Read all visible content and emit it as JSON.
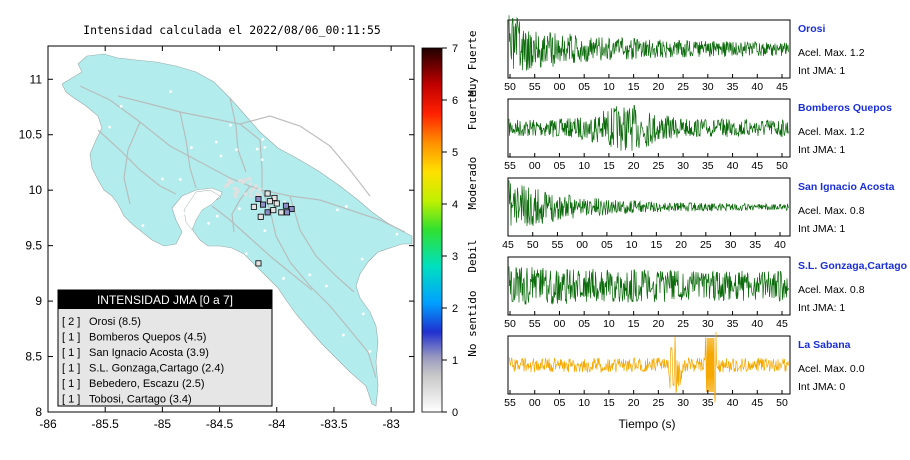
{
  "map": {
    "title": "Intensidad calculada el 2022/08/06_00:11:55",
    "lon_ticks": [
      "-86",
      "-85.5",
      "-85",
      "-84.5",
      "-84",
      "-83.5",
      "-83"
    ],
    "lat_ticks": [
      "11",
      "10.5",
      "10",
      "9.5",
      "9",
      "8.5",
      "8"
    ],
    "xlim": [
      -86,
      -82.8
    ],
    "ylim": [
      8,
      11.3
    ],
    "land_color": "#b3ecec",
    "legend": {
      "title": "INTENSIDAD JMA [0 a 7]",
      "items": [
        {
          "count": "[ 2 ]",
          "name": "Orosi (8.5)"
        },
        {
          "count": "[ 1 ]",
          "name": "Bomberos Quepos (4.5)"
        },
        {
          "count": "[ 1 ]",
          "name": "San Ignacio Acosta (3.9)"
        },
        {
          "count": "[ 1 ]",
          "name": "S.L. Gonzaga,Cartago (2.4)"
        },
        {
          "count": "[ 1 ]",
          "name": "Bebedero, Escazu (2.5)"
        },
        {
          "count": "[ 1 ]",
          "name": "Tobosi, Cartago (3.4)"
        }
      ]
    },
    "stations": [
      {
        "lon": -83.87,
        "lat": 9.83,
        "intensity": 1
      },
      {
        "lon": -83.92,
        "lat": 9.86,
        "intensity": 1
      },
      {
        "lon": -84.02,
        "lat": 9.93,
        "intensity": 0
      },
      {
        "lon": -84.06,
        "lat": 9.9,
        "intensity": 0
      },
      {
        "lon": -84.12,
        "lat": 9.87,
        "intensity": 1
      },
      {
        "lon": -84.16,
        "lat": 9.92,
        "intensity": 1
      },
      {
        "lon": -84.08,
        "lat": 9.97,
        "intensity": 0
      },
      {
        "lon": -84.03,
        "lat": 9.82,
        "intensity": 0
      },
      {
        "lon": -84.2,
        "lat": 9.85,
        "intensity": 0
      },
      {
        "lon": -83.96,
        "lat": 9.8,
        "intensity": 0
      },
      {
        "lon": -83.91,
        "lat": 9.8,
        "intensity": 1
      },
      {
        "lon": -84.16,
        "lat": 9.34,
        "intensity": 0
      },
      {
        "lon": -84.14,
        "lat": 9.76,
        "intensity": 0
      },
      {
        "lon": -84.08,
        "lat": 9.8,
        "intensity": 1
      },
      {
        "lon": -84.0,
        "lat": 9.88,
        "intensity": 0
      }
    ]
  },
  "colorbar": {
    "ticks": [
      "0",
      "1",
      "2",
      "3",
      "4",
      "5",
      "6",
      "7"
    ],
    "categories": [
      "No sentido",
      "Debil",
      "Moderado",
      "Fuerte",
      "Muy Fuerte"
    ]
  },
  "waveforms": {
    "xlabel": "Tiempo (s)",
    "panels": [
      {
        "name": "Orosi",
        "acel": "Acel. Max. 1.2",
        "jma": "Int JMA: 1",
        "color": "#0b6b0b",
        "ticks": [
          "50",
          "55",
          "00",
          "05",
          "10",
          "15",
          "20",
          "25",
          "30",
          "35",
          "40",
          "45"
        ],
        "decay": "slow",
        "seed": 3
      },
      {
        "name": "Bomberos Quepos",
        "acel": "Acel. Max. 1.2",
        "jma": "Int JMA: 1",
        "color": "#0b6b0b",
        "ticks": [
          "55",
          "00",
          "05",
          "10",
          "15",
          "20",
          "25",
          "30",
          "35",
          "40",
          "45",
          "50"
        ],
        "decay": "burst",
        "seed": 7
      },
      {
        "name": "San Ignacio Acosta",
        "acel": "Acel. Max. 0.8",
        "jma": "Int JMA: 1",
        "color": "#0b6b0b",
        "ticks": [
          "45",
          "50",
          "55",
          "00",
          "05",
          "10",
          "15",
          "20",
          "25",
          "30",
          "35",
          "40"
        ],
        "decay": "fast",
        "seed": 11
      },
      {
        "name": "S.L. Gonzaga,Cartago",
        "acel": "Acel. Max. 0.8",
        "jma": "Int JMA: 1",
        "color": "#0b6b0b",
        "ticks": [
          "50",
          "55",
          "00",
          "05",
          "10",
          "15",
          "20",
          "25",
          "30",
          "35",
          "40",
          "45"
        ],
        "decay": "flat",
        "seed": 19
      },
      {
        "name": "La Sabana",
        "acel": "Acel. Max. 0.0",
        "jma": "Int JMA: 0",
        "color": "#f5a800",
        "ticks": [
          "55",
          "00",
          "05",
          "10",
          "15",
          "20",
          "25",
          "30",
          "35",
          "40",
          "45",
          "50"
        ],
        "decay": "spikes",
        "seed": 23
      }
    ]
  },
  "chart_data": [
    {
      "type": "scatter",
      "title": "Intensidad calculada el 2022/08/06_00:11:55",
      "xlim": [
        -86,
        -82.8
      ],
      "ylim": [
        8,
        11.3
      ],
      "legend": "bottom-left"
    },
    {
      "type": "line",
      "xlabel": "Tiempo (s)",
      "series": [
        {
          "name": "Orosi",
          "max_accel": 1.2,
          "jma_intensity": 1
        },
        {
          "name": "Bomberos Quepos",
          "max_accel": 1.2,
          "jma_intensity": 1
        },
        {
          "name": "San Ignacio Acosta",
          "max_accel": 0.8,
          "jma_intensity": 1
        },
        {
          "name": "S.L. Gonzaga,Cartago",
          "max_accel": 0.8,
          "jma_intensity": 1
        },
        {
          "name": "La Sabana",
          "max_accel": 0.0,
          "jma_intensity": 0
        }
      ]
    }
  ]
}
